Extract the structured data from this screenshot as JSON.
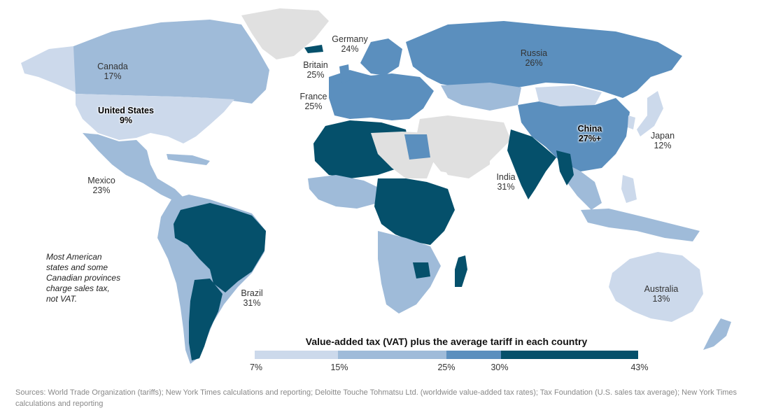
{
  "colors": {
    "no_data": "#e0e0e0",
    "bin_7_15": "#ccd9eb",
    "bin_15_25": "#9fbbd9",
    "bin_25_30": "#5b8fbe",
    "bin_30_43": "#05506b",
    "ocean": "#ffffff"
  },
  "countries": [
    {
      "name": "Canada",
      "value": "17%",
      "bin": "bin_15_25"
    },
    {
      "name": "United States",
      "value": "9%",
      "bin": "bin_7_15",
      "highlight": true
    },
    {
      "name": "Mexico",
      "value": "23%",
      "bin": "bin_15_25"
    },
    {
      "name": "Brazil",
      "value": "31%",
      "bin": "bin_30_43"
    },
    {
      "name": "Germany",
      "value": "24%",
      "bin": "bin_15_25"
    },
    {
      "name": "Britain",
      "value": "25%",
      "bin": "bin_25_30"
    },
    {
      "name": "France",
      "value": "25%",
      "bin": "bin_25_30"
    },
    {
      "name": "Russia",
      "value": "26%",
      "bin": "bin_25_30"
    },
    {
      "name": "China",
      "value": "27%+",
      "bin": "bin_25_30",
      "highlight": true
    },
    {
      "name": "Japan",
      "value": "12%",
      "bin": "bin_7_15"
    },
    {
      "name": "India",
      "value": "31%",
      "bin": "bin_30_43"
    },
    {
      "name": "Australia",
      "value": "13%",
      "bin": "bin_7_15"
    }
  ],
  "note": "Most American states and some Canadian provinces charge sales tax, not VAT.",
  "legend": {
    "title": "Value-added tax (VAT) plus the average tariff in each country",
    "stops": [
      {
        "label": "7%",
        "value": 7
      },
      {
        "label": "15%",
        "value": 15
      },
      {
        "label": "25%",
        "value": 25
      },
      {
        "label": "30%",
        "value": 30
      },
      {
        "label": "43%",
        "value": 43
      }
    ]
  },
  "source": "Sources: World Trade Organization (tariffs); New York Times calculations and reporting; Deloitte Touche Tohmatsu Ltd. (worldwide value-added tax rates); Tax Foundation (U.S. sales tax average); New York Times calculations and reporting"
}
